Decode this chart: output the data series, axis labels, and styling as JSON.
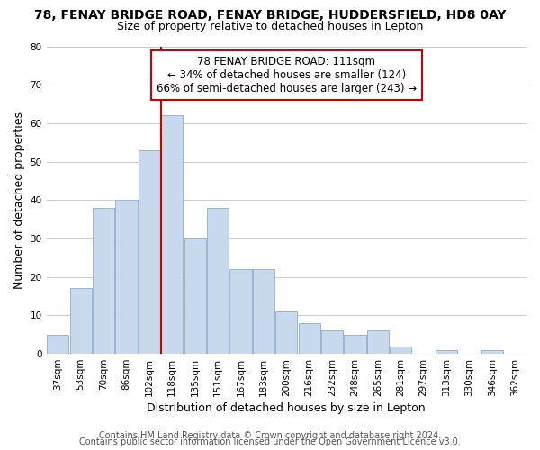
{
  "title1": "78, FENAY BRIDGE ROAD, FENAY BRIDGE, HUDDERSFIELD, HD8 0AY",
  "title2": "Size of property relative to detached houses in Lepton",
  "xlabel": "Distribution of detached houses by size in Lepton",
  "ylabel": "Number of detached properties",
  "bar_color": "#c8d9ee",
  "bar_edge_color": "#9ab4d4",
  "categories": [
    "37sqm",
    "53sqm",
    "70sqm",
    "86sqm",
    "102sqm",
    "118sqm",
    "135sqm",
    "151sqm",
    "167sqm",
    "183sqm",
    "200sqm",
    "216sqm",
    "232sqm",
    "248sqm",
    "265sqm",
    "281sqm",
    "297sqm",
    "313sqm",
    "330sqm",
    "346sqm",
    "362sqm"
  ],
  "values": [
    5,
    17,
    38,
    40,
    53,
    62,
    30,
    38,
    22,
    22,
    11,
    8,
    6,
    5,
    6,
    2,
    0,
    1,
    0,
    1,
    0
  ],
  "vline_color": "#cc0000",
  "annotation_line1": "78 FENAY BRIDGE ROAD: 111sqm",
  "annotation_line2": "← 34% of detached houses are smaller (124)",
  "annotation_line3": "66% of semi-detached houses are larger (243) →",
  "ylim": [
    0,
    80
  ],
  "yticks": [
    0,
    10,
    20,
    30,
    40,
    50,
    60,
    70,
    80
  ],
  "footer1": "Contains HM Land Registry data © Crown copyright and database right 2024.",
  "footer2": "Contains public sector information licensed under the Open Government Licence v3.0.",
  "background_color": "#ffffff",
  "grid_color": "#cccccc",
  "title1_fontsize": 10,
  "title2_fontsize": 9,
  "axis_label_fontsize": 9,
  "tick_fontsize": 7.5,
  "annotation_fontsize": 8.5,
  "footer_fontsize": 7
}
